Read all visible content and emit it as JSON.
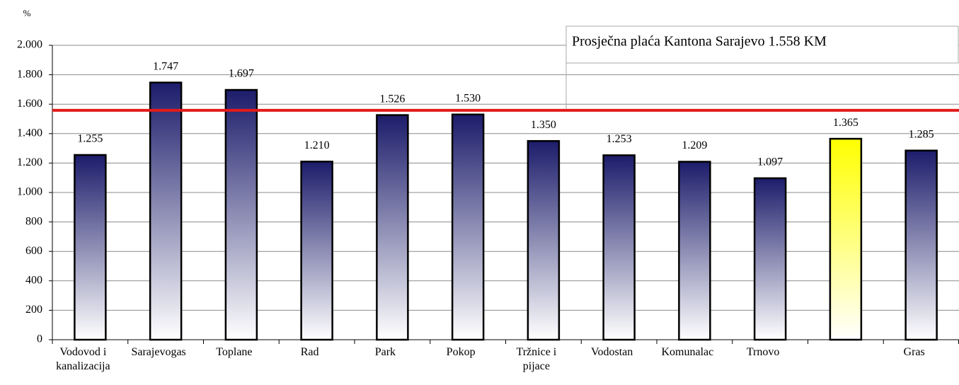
{
  "chart_data": {
    "type": "bar",
    "y_axis_label": "%",
    "categories": [
      "Vodovod i\nkanalizacija",
      "Sarajevogas",
      "Toplane",
      "Rad",
      "Park",
      "Pokop",
      "Tržnice i\npijace",
      "Vodostan",
      "Komunalac",
      "Trnovo",
      null,
      "Gras"
    ],
    "values": [
      1255,
      1747,
      1697,
      1210,
      1526,
      1530,
      1350,
      1253,
      1209,
      1097,
      1365,
      1285
    ],
    "value_labels": [
      "1.255",
      "1.747",
      "1.697",
      "1.210",
      "1.526",
      "1.530",
      "1.350",
      "1.253",
      "1.209",
      "1.097",
      "1.365",
      "1.285"
    ],
    "colors": [
      "#1c1c6b",
      "#1c1c6b",
      "#1c1c6b",
      "#1c1c6b",
      "#1c1c6b",
      "#1c1c6b",
      "#1c1c6b",
      "#1c1c6b",
      "#1c1c6b",
      "#1c1c6b",
      "#ffff00",
      "#1c1c6b"
    ],
    "ylim": [
      0,
      2000
    ],
    "yticks": [
      0,
      200,
      400,
      600,
      800,
      {
        "value": 1000,
        "label": "1.000"
      },
      {
        "value": 1200,
        "label": "1.200"
      },
      {
        "value": 1400,
        "label": "1.400"
      },
      {
        "value": 1600,
        "label": "1.600"
      },
      {
        "value": 1800,
        "label": "1.800"
      },
      {
        "value": 2000,
        "label": "2.000"
      }
    ],
    "grid": true,
    "reference_line": {
      "value": 1558,
      "color": "#e31a1a",
      "label": "Prosječna plaća Kantona Sarajevo 1.558 KM"
    }
  }
}
